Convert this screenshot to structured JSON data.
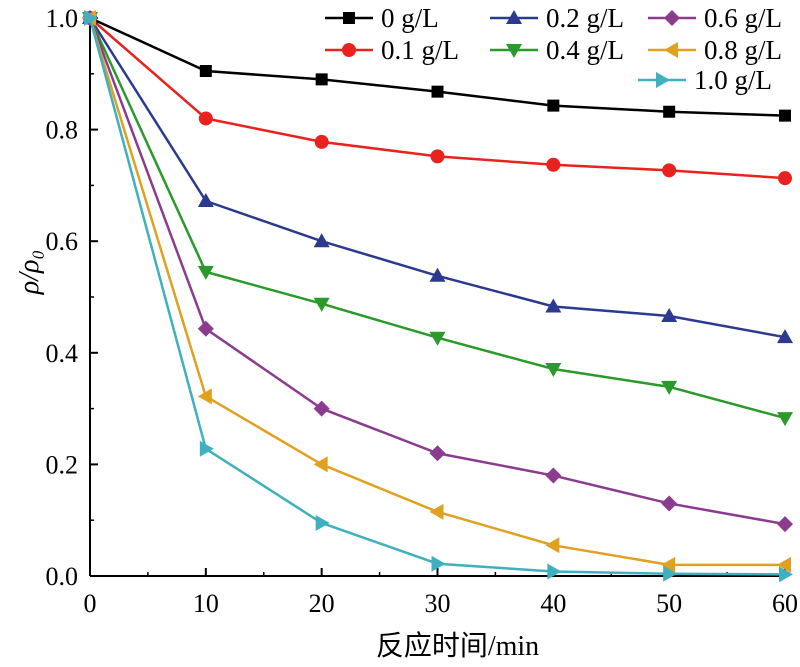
{
  "chart_data": {
    "type": "line",
    "x": [
      0,
      10,
      20,
      30,
      40,
      50,
      60
    ],
    "xlabel": "反应时间/min",
    "ylabel": "ρ/ρ₀",
    "xlim": [
      0,
      60
    ],
    "ylim": [
      0,
      1.0
    ],
    "xticks": [
      "0",
      "10",
      "20",
      "30",
      "40",
      "50",
      "60"
    ],
    "yticks": [
      "0.0",
      "0.2",
      "0.4",
      "0.6",
      "0.8",
      "1.0"
    ],
    "grid": false,
    "legend_position": "top-right",
    "series": [
      {
        "name": "0 g/L",
        "color": "#000000",
        "marker": "square",
        "values": [
          1.0,
          0.905,
          0.89,
          0.868,
          0.843,
          0.832,
          0.825
        ]
      },
      {
        "name": "0.1 g/L",
        "color": "#e8231f",
        "marker": "circle",
        "values": [
          1.0,
          0.82,
          0.778,
          0.752,
          0.737,
          0.727,
          0.713
        ]
      },
      {
        "name": "0.2 g/L",
        "color": "#2b3a8f",
        "marker": "triangle-up",
        "values": [
          1.0,
          0.672,
          0.6,
          0.538,
          0.483,
          0.466,
          0.428
        ]
      },
      {
        "name": "0.4 g/L",
        "color": "#2a9a2a",
        "marker": "triangle-down",
        "values": [
          1.0,
          0.545,
          0.488,
          0.427,
          0.371,
          0.339,
          0.283
        ]
      },
      {
        "name": "0.6 g/L",
        "color": "#8c3c8f",
        "marker": "diamond",
        "values": [
          1.0,
          0.443,
          0.3,
          0.22,
          0.18,
          0.13,
          0.093
        ]
      },
      {
        "name": "0.8 g/L",
        "color": "#e0a020",
        "marker": "triangle-left",
        "values": [
          1.0,
          0.322,
          0.2,
          0.115,
          0.055,
          0.02,
          0.02
        ]
      },
      {
        "name": "1.0 g/L",
        "color": "#40b0c0",
        "marker": "triangle-right",
        "values": [
          1.0,
          0.228,
          0.095,
          0.022,
          0.008,
          0.004,
          0.003
        ]
      }
    ]
  }
}
